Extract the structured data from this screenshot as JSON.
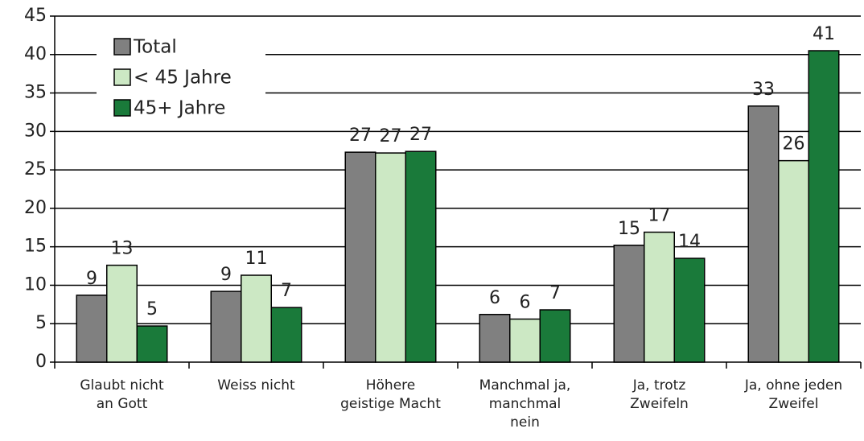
{
  "chart_data": {
    "type": "bar",
    "categories": [
      "Glaubt nicht\nan Gott",
      "Weiss nicht",
      "Höhere\ngeistige Macht",
      "Manchmal ja,\nmanchmal\nnein",
      "Ja, trotz\nZweifeln",
      "Ja, ohne jeden\nZweifel"
    ],
    "series": [
      {
        "name": "Total",
        "color": "#808080",
        "values": [
          8.7,
          9.2,
          27.3,
          6.2,
          15.2,
          33.3
        ],
        "value_labels": [
          "9",
          "9",
          "27",
          "6",
          "15",
          "33"
        ]
      },
      {
        "name": "< 45 Jahre",
        "color": "#cce8c4",
        "values": [
          12.6,
          11.3,
          27.2,
          5.6,
          16.9,
          26.2
        ],
        "value_labels": [
          "13",
          "11",
          "27",
          "6",
          "17",
          "26"
        ]
      },
      {
        "name": "45+ Jahre",
        "color": "#1a7a3a",
        "values": [
          4.7,
          7.1,
          27.4,
          6.8,
          13.5,
          40.5
        ],
        "value_labels": [
          "5",
          "7",
          "27",
          "7",
          "14",
          "41"
        ]
      }
    ],
    "ylim": [
      0,
      45
    ],
    "yticks": [
      0,
      5,
      10,
      15,
      20,
      25,
      30,
      35,
      40,
      45
    ],
    "grid": true,
    "legend": "upper left"
  }
}
